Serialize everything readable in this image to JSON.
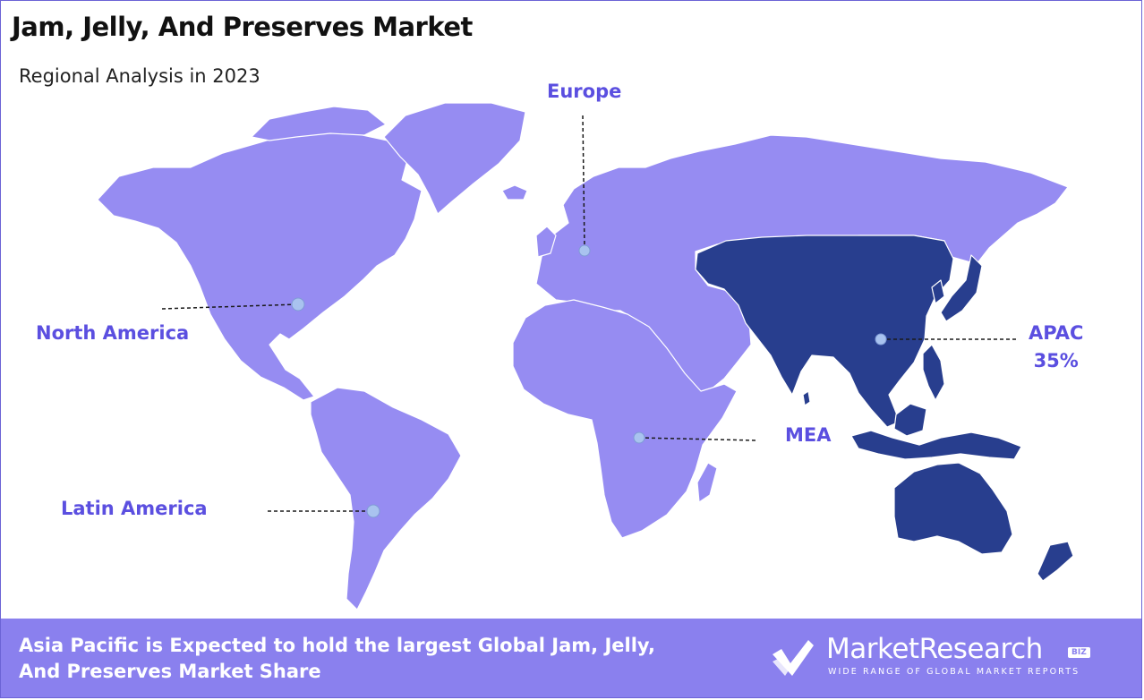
{
  "header": {
    "title": "Jam, Jelly, And Preserves Market",
    "subtitle": "Regional Analysis in 2023"
  },
  "regions": [
    {
      "key": "europe",
      "label": "Europe",
      "value": ""
    },
    {
      "key": "north_america",
      "label": "North America",
      "value": ""
    },
    {
      "key": "latin_america",
      "label": "Latin America",
      "value": ""
    },
    {
      "key": "mea",
      "label": "MEA",
      "value": ""
    },
    {
      "key": "apac",
      "label": "APAC",
      "value": "35%",
      "highlighted": true
    }
  ],
  "colors": {
    "land": "#968cf2",
    "highlight": "#283e8e",
    "label": "#5b4fe0",
    "footer": "#8a80ee",
    "marker": "#a9c3ef"
  },
  "footer": {
    "text": "Asia Pacific is Expected to hold the largest Global Jam, Jelly, And Preserves Market Share"
  },
  "brand": {
    "name": "MarketResearch",
    "badge": "BIZ",
    "tagline": "WIDE RANGE OF GLOBAL MARKET REPORTS",
    "icon": "market-research-logo-icon"
  }
}
